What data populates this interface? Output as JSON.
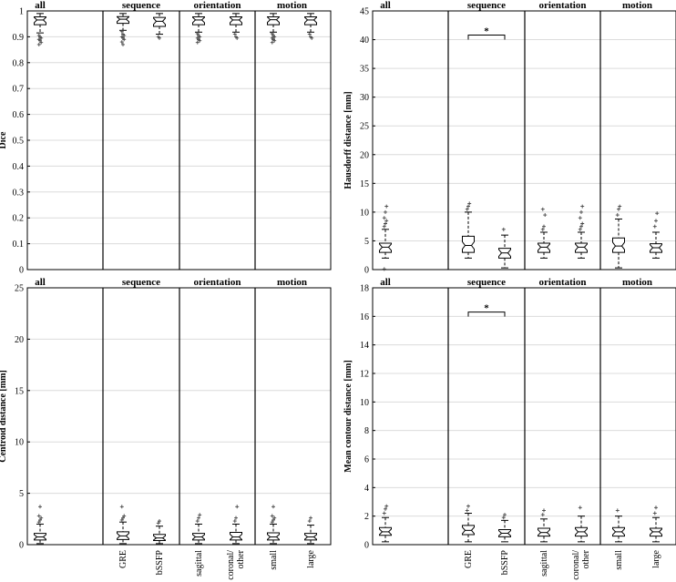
{
  "chart_data": [
    {
      "type": "box",
      "ylabel": "Dice",
      "ylim": [
        0,
        1
      ],
      "yticks": [
        0,
        0.1,
        0.2,
        0.3,
        0.4,
        0.5,
        0.6,
        0.7,
        0.8,
        0.9,
        1
      ],
      "ytick_labels": [
        "0",
        "0.1",
        "0.2",
        "0.3",
        "0.4",
        "0.5",
        "0.6",
        "0.7",
        "0.8",
        "0.9",
        "1"
      ],
      "grid": "horizontal",
      "groups": [
        "all",
        "sequence",
        "orientation",
        "motion"
      ],
      "categories": [
        "",
        "GRE",
        "bSSFP",
        "sagittal",
        "coronal/ other",
        "small",
        "large"
      ],
      "boxes": [
        {
          "category": "",
          "group": "all",
          "min": 0.915,
          "q1": 0.947,
          "median": 0.965,
          "q3": 0.977,
          "max": 0.99,
          "outliers": [
            0.905,
            0.9,
            0.895,
            0.89,
            0.885,
            0.878,
            0.87
          ]
        },
        {
          "category": "GRE",
          "group": "sequence",
          "min": 0.925,
          "q1": 0.952,
          "median": 0.968,
          "q3": 0.978,
          "max": 0.99,
          "outliers": [
            0.92,
            0.91,
            0.905,
            0.9,
            0.895,
            0.89,
            0.88,
            0.87
          ]
        },
        {
          "category": "bSSFP",
          "group": "sequence",
          "min": 0.91,
          "q1": 0.94,
          "median": 0.96,
          "q3": 0.975,
          "max": 0.99,
          "outliers": [
            0.9,
            0.895
          ]
        },
        {
          "category": "sagittal",
          "group": "orientation",
          "min": 0.918,
          "q1": 0.947,
          "median": 0.965,
          "q3": 0.977,
          "max": 0.99,
          "outliers": [
            0.912,
            0.905,
            0.9,
            0.895,
            0.89,
            0.885,
            0.878
          ]
        },
        {
          "category": "coronal/ other",
          "group": "orientation",
          "min": 0.918,
          "q1": 0.947,
          "median": 0.965,
          "q3": 0.977,
          "max": 0.99,
          "outliers": [
            0.91,
            0.9,
            0.895
          ]
        },
        {
          "category": "small",
          "group": "motion",
          "min": 0.918,
          "q1": 0.947,
          "median": 0.966,
          "q3": 0.977,
          "max": 0.99,
          "outliers": [
            0.912,
            0.905,
            0.9,
            0.895,
            0.89,
            0.885,
            0.878
          ]
        },
        {
          "category": "large",
          "group": "motion",
          "min": 0.918,
          "q1": 0.947,
          "median": 0.965,
          "q3": 0.977,
          "max": 0.99,
          "outliers": [
            0.91,
            0.9,
            0.895
          ]
        }
      ],
      "significance": []
    },
    {
      "type": "box",
      "ylabel": "Hausdorff distance [mm]",
      "ylim": [
        0,
        45
      ],
      "yticks": [
        0,
        5,
        10,
        15,
        20,
        25,
        30,
        35,
        40,
        45
      ],
      "ytick_labels": [
        "0",
        "5",
        "10",
        "15",
        "20",
        "25",
        "30",
        "35",
        "40",
        "45"
      ],
      "grid": "horizontal",
      "groups": [
        "all",
        "sequence",
        "orientation",
        "motion"
      ],
      "categories": [
        "",
        "GRE",
        "bSSFP",
        "sagittal",
        "coronal/ other",
        "small",
        "large"
      ],
      "boxes": [
        {
          "category": "",
          "group": "all",
          "min": 2.0,
          "q1": 3.0,
          "median": 3.9,
          "q3": 4.6,
          "max": 7.0,
          "outliers": [
            7.5,
            8.0,
            8.5,
            9.0,
            10.0,
            11.0,
            0.1
          ]
        },
        {
          "category": "GRE",
          "group": "sequence",
          "min": 2.0,
          "q1": 3.0,
          "median": 4.2,
          "q3": 5.8,
          "max": 10.0,
          "outliers": [
            10.5,
            11.0,
            11.5
          ]
        },
        {
          "category": "bSSFP",
          "group": "sequence",
          "min": 0.3,
          "q1": 2.0,
          "median": 2.9,
          "q3": 3.7,
          "max": 6.0,
          "outliers": [
            7.0
          ]
        },
        {
          "category": "sagittal",
          "group": "orientation",
          "min": 2.0,
          "q1": 3.0,
          "median": 3.9,
          "q3": 4.6,
          "max": 6.5,
          "outliers": [
            7.0,
            7.5,
            9.5,
            10.5
          ]
        },
        {
          "category": "coronal/ other",
          "group": "orientation",
          "min": 2.0,
          "q1": 3.0,
          "median": 3.9,
          "q3": 4.6,
          "max": 6.5,
          "outliers": [
            7.0,
            7.5,
            8.0,
            9.0,
            10.0,
            11.0
          ]
        },
        {
          "category": "small",
          "group": "motion",
          "min": 0.3,
          "q1": 3.0,
          "median": 4.1,
          "q3": 5.5,
          "max": 8.8,
          "outliers": [
            9.5,
            10.5,
            11.0
          ]
        },
        {
          "category": "large",
          "group": "motion",
          "min": 2.0,
          "q1": 3.0,
          "median": 3.8,
          "q3": 4.5,
          "max": 6.5,
          "outliers": [
            7.5,
            8.5,
            9.8
          ]
        }
      ],
      "significance": [
        {
          "between": [
            "GRE",
            "bSSFP"
          ],
          "y": 40.8,
          "label": "*"
        }
      ]
    },
    {
      "type": "box",
      "ylabel": "Centroid distance [mm]",
      "ylim": [
        0,
        25
      ],
      "yticks": [
        0,
        5,
        10,
        15,
        20,
        25
      ],
      "ytick_labels": [
        "0",
        "5",
        "10",
        "15",
        "20",
        "25"
      ],
      "grid": "horizontal",
      "groups": [
        "all",
        "sequence",
        "orientation",
        "motion"
      ],
      "categories": [
        "",
        "GRE",
        "bSSFP",
        "sagittal",
        "coronal/ other",
        "small",
        "large"
      ],
      "boxes": [
        {
          "category": "",
          "group": "all",
          "min": 0.1,
          "q1": 0.45,
          "median": 0.75,
          "q3": 1.1,
          "max": 2.0,
          "outliers": [
            2.2,
            2.4,
            2.6,
            2.8,
            3.7
          ]
        },
        {
          "category": "GRE",
          "group": "sequence",
          "min": 0.1,
          "q1": 0.5,
          "median": 0.85,
          "q3": 1.25,
          "max": 2.2,
          "outliers": [
            2.4,
            2.6,
            2.8,
            3.7
          ]
        },
        {
          "category": "bSSFP",
          "group": "sequence",
          "min": 0.1,
          "q1": 0.4,
          "median": 0.65,
          "q3": 1.0,
          "max": 1.8,
          "outliers": [
            2.1,
            2.3
          ]
        },
        {
          "category": "sagittal",
          "group": "orientation",
          "min": 0.1,
          "q1": 0.45,
          "median": 0.75,
          "q3": 1.1,
          "max": 2.0,
          "outliers": [
            2.3,
            2.6,
            2.9
          ]
        },
        {
          "category": "coronal/ other",
          "group": "orientation",
          "min": 0.1,
          "q1": 0.45,
          "median": 0.75,
          "q3": 1.2,
          "max": 2.0,
          "outliers": [
            2.3,
            2.6,
            3.7
          ]
        },
        {
          "category": "small",
          "group": "motion",
          "min": 0.1,
          "q1": 0.45,
          "median": 0.75,
          "q3": 1.15,
          "max": 2.0,
          "outliers": [
            2.2,
            2.4,
            2.6,
            2.8,
            3.7
          ]
        },
        {
          "category": "large",
          "group": "motion",
          "min": 0.1,
          "q1": 0.45,
          "median": 0.75,
          "q3": 1.1,
          "max": 1.9,
          "outliers": [
            2.3,
            2.6
          ]
        }
      ],
      "significance": []
    },
    {
      "type": "box",
      "ylabel": "Mean contour distance [mm]",
      "ylim": [
        0,
        18
      ],
      "yticks": [
        0,
        2,
        4,
        6,
        8,
        10,
        12,
        14,
        16,
        18
      ],
      "ytick_labels": [
        "0",
        "2",
        "4",
        "6",
        "8",
        "10",
        "12",
        "14",
        "16",
        "18"
      ],
      "grid": "horizontal",
      "groups": [
        "all",
        "sequence",
        "orientation",
        "motion"
      ],
      "categories": [
        "",
        "GRE",
        "bSSFP",
        "sagittal",
        "coronal/ other",
        "small",
        "large"
      ],
      "boxes": [
        {
          "category": "",
          "group": "all",
          "min": 0.2,
          "q1": 0.65,
          "median": 0.9,
          "q3": 1.2,
          "max": 1.9,
          "outliers": [
            2.2,
            2.5,
            2.7
          ]
        },
        {
          "category": "GRE",
          "group": "sequence",
          "min": 0.2,
          "q1": 0.7,
          "median": 1.0,
          "q3": 1.35,
          "max": 2.2,
          "outliers": [
            2.4,
            2.7
          ]
        },
        {
          "category": "bSSFP",
          "group": "sequence",
          "min": 0.2,
          "q1": 0.55,
          "median": 0.8,
          "q3": 1.05,
          "max": 1.7,
          "outliers": [
            1.9,
            2.1
          ]
        },
        {
          "category": "sagittal",
          "group": "orientation",
          "min": 0.2,
          "q1": 0.6,
          "median": 0.85,
          "q3": 1.15,
          "max": 1.8,
          "outliers": [
            2.1,
            2.4
          ]
        },
        {
          "category": "coronal/ other",
          "group": "orientation",
          "min": 0.2,
          "q1": 0.6,
          "median": 0.9,
          "q3": 1.2,
          "max": 2.0,
          "outliers": [
            2.6
          ]
        },
        {
          "category": "small",
          "group": "motion",
          "min": 0.2,
          "q1": 0.6,
          "median": 0.9,
          "q3": 1.2,
          "max": 2.0,
          "outliers": [
            2.4
          ]
        },
        {
          "category": "large",
          "group": "motion",
          "min": 0.2,
          "q1": 0.6,
          "median": 0.9,
          "q3": 1.15,
          "max": 1.9,
          "outliers": [
            2.2,
            2.6
          ]
        }
      ],
      "significance": [
        {
          "between": [
            "GRE",
            "bSSFP"
          ],
          "y": 16.3,
          "label": "*"
        }
      ]
    }
  ]
}
